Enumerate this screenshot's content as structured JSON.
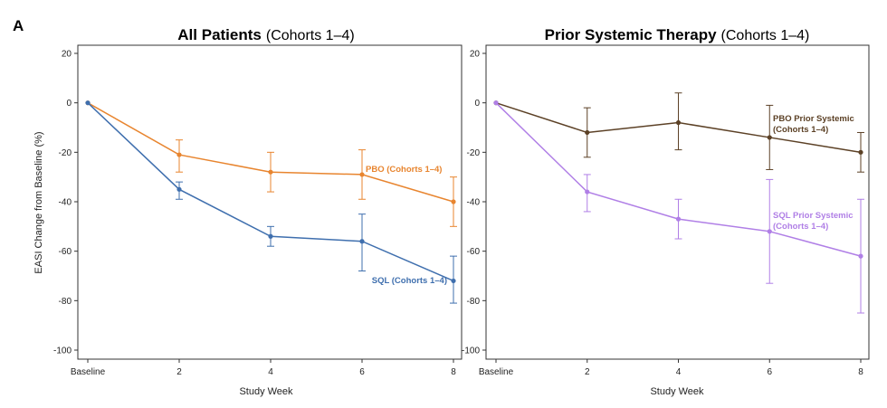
{
  "panel_label": "A",
  "chart_data": [
    {
      "type": "line",
      "title_bold": "All Patients",
      "title_rest": "(Cohorts 1–4)",
      "xlabel": "Study Week",
      "ylabel": "EASI Change from Baseline (%)",
      "categories": [
        "Baseline",
        "2",
        "4",
        "6",
        "8"
      ],
      "ylim": [
        -100,
        20
      ],
      "yticks": [
        "20",
        "0",
        "-20",
        "-40",
        "-60",
        "-80",
        "-100"
      ],
      "grid": false,
      "series": [
        {
          "name": "PBO (Cohorts 1–4)",
          "label_lines": [
            "PBO (Cohorts 1–4)"
          ],
          "color": "#E8852F",
          "values": [
            0,
            -21,
            -28,
            -29,
            -40
          ],
          "err_low": [
            0,
            -28,
            -36,
            -39,
            -50
          ],
          "err_high": [
            0,
            -15,
            -20,
            -19,
            -30
          ]
        },
        {
          "name": "SQL (Cohorts 1–4)",
          "label_lines": [
            "SQL (Cohorts 1–4)"
          ],
          "color": "#3F6FAE",
          "values": [
            0,
            -35,
            -54,
            -56,
            -72
          ],
          "err_low": [
            0,
            -39,
            -58,
            -68,
            -81
          ],
          "err_high": [
            0,
            -32,
            -50,
            -45,
            -62
          ]
        }
      ]
    },
    {
      "type": "line",
      "title_bold": "Prior Systemic Therapy",
      "title_rest": "(Cohorts 1–4)",
      "xlabel": "Study Week",
      "ylabel": "",
      "categories": [
        "Baseline",
        "2",
        "4",
        "6",
        "8"
      ],
      "ylim": [
        -100,
        20
      ],
      "yticks": [
        "20",
        "0",
        "-20",
        "-40",
        "-60",
        "-80",
        "-100"
      ],
      "grid": false,
      "series": [
        {
          "name": "PBO Prior Systemic (Cohorts 1–4)",
          "label_lines": [
            "PBO Prior Systemic",
            "(Cohorts 1–4)"
          ],
          "color": "#5C4126",
          "values": [
            0,
            -12,
            -8,
            -14,
            -20
          ],
          "err_low": [
            0,
            -22,
            -19,
            -27,
            -28
          ],
          "err_high": [
            0,
            -2,
            4,
            -1,
            -12
          ]
        },
        {
          "name": "SQL Prior Systemic (Cohorts 1–4)",
          "label_lines": [
            "SQL Prior Systemic",
            "(Cohorts 1–4)"
          ],
          "color": "#B07FE6",
          "values": [
            0,
            -36,
            -47,
            -52,
            -62
          ],
          "err_low": [
            0,
            -44,
            -55,
            -73,
            -85
          ],
          "err_high": [
            0,
            -29,
            -39,
            -31,
            -39
          ]
        }
      ]
    }
  ]
}
